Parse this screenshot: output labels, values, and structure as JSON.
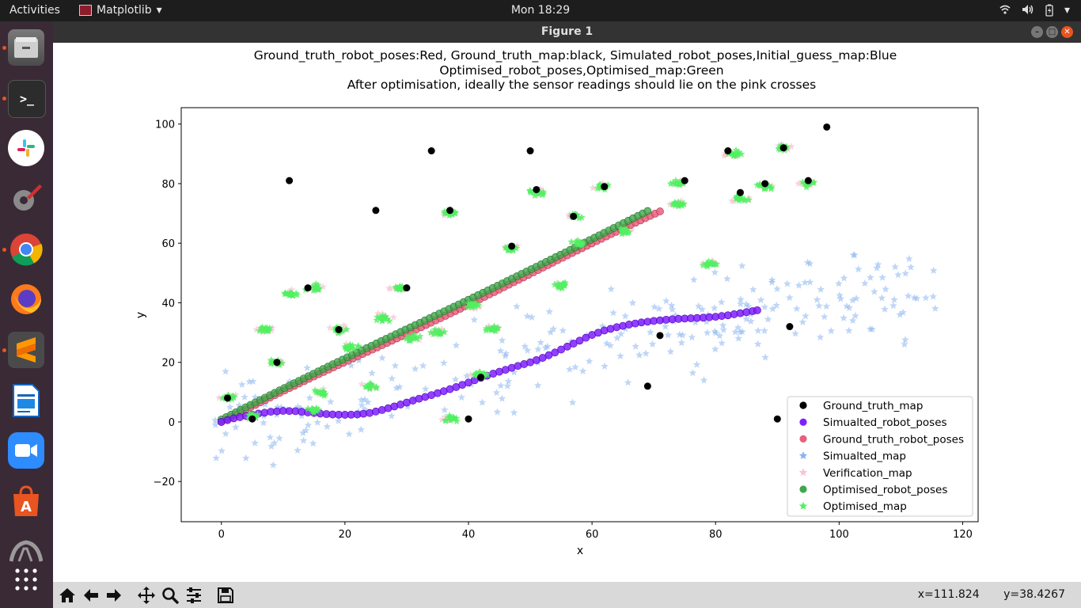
{
  "topbar": {
    "activities": "Activities",
    "app_name": "Matplotlib",
    "clock": "Mon 18:29"
  },
  "window": {
    "title": "Figure 1"
  },
  "dock": {
    "items": [
      "files-icon",
      "terminal-icon",
      "slack-icon",
      "system-tools-icon",
      "chrome-icon",
      "firefox-icon",
      "sublime-icon",
      "writer-icon",
      "zoom-icon",
      "software-icon",
      "steam-icon",
      "show-apps-icon"
    ]
  },
  "toolbar": {
    "x_readout": "x=111.824",
    "y_readout": "y=38.4267"
  },
  "chart_data": {
    "type": "scatter",
    "title": [
      "Ground_truth_robot_poses:Red,  Ground_truth_map:black,  Simulated_robot_poses,Initial_guess_map:Blue",
      "Optimised_robot_poses,Optimised_map:Green",
      "After optimisation, ideally the sensor readings should lie on the pink crosses"
    ],
    "xlabel": "x",
    "ylabel": "y",
    "xlim": [
      -6.5,
      122.5
    ],
    "ylim": [
      -33.5,
      105.5
    ],
    "xticks": [
      0,
      20,
      40,
      60,
      80,
      100,
      120
    ],
    "yticks": [
      -20,
      0,
      20,
      40,
      60,
      80,
      100
    ],
    "xtick_labels": [
      "0",
      "20",
      "40",
      "60",
      "80",
      "100",
      "120"
    ],
    "ytick_labels": [
      "−20",
      "0",
      "20",
      "40",
      "60",
      "80",
      "100"
    ],
    "legend": [
      {
        "label": "Ground_truth_map",
        "marker": "circle",
        "color": "#000000"
      },
      {
        "label": "Simualted_robot_poses",
        "marker": "circle",
        "color": "#7f1fff"
      },
      {
        "label": "Ground_truth_robot_poses",
        "marker": "circle",
        "color": "#e8607a"
      },
      {
        "label": "Simualted_map",
        "marker": "star",
        "color": "#8ab4ef"
      },
      {
        "label": "Verification_map",
        "marker": "star",
        "color": "#f7c6d4"
      },
      {
        "label": "Optimised_robot_poses",
        "marker": "circle",
        "color": "#3ea84a"
      },
      {
        "label": "Optimised_map",
        "marker": "star",
        "color": "#50f060"
      }
    ],
    "ground_truth_map": [
      [
        1,
        8
      ],
      [
        11,
        81
      ],
      [
        14,
        45
      ],
      [
        19,
        31
      ],
      [
        25,
        71
      ],
      [
        34,
        91
      ],
      [
        37,
        71
      ],
      [
        40,
        1
      ],
      [
        42,
        15
      ],
      [
        50,
        91
      ],
      [
        51,
        78
      ],
      [
        57,
        69
      ],
      [
        62,
        79
      ],
      [
        69,
        12
      ],
      [
        71,
        29
      ],
      [
        75,
        81
      ],
      [
        84,
        77
      ],
      [
        88,
        80
      ],
      [
        90,
        1
      ],
      [
        91,
        92
      ],
      [
        92,
        32
      ],
      [
        95,
        81
      ],
      [
        98,
        99
      ],
      [
        82,
        91
      ],
      [
        47,
        59
      ],
      [
        30,
        45
      ],
      [
        9,
        20
      ],
      [
        5,
        1
      ]
    ],
    "simulated_robot_poses": [
      [
        0,
        0
      ],
      [
        2,
        1.2
      ],
      [
        4,
        2
      ],
      [
        6,
        2.8
      ],
      [
        8,
        3.4
      ],
      [
        10,
        3.7
      ],
      [
        12,
        3.6
      ],
      [
        14,
        3.2
      ],
      [
        16,
        2.8
      ],
      [
        18,
        2.5
      ],
      [
        20,
        2.4
      ],
      [
        22,
        2.5
      ],
      [
        24,
        3
      ],
      [
        26,
        4
      ],
      [
        28,
        5.2
      ],
      [
        30,
        6.5
      ],
      [
        32,
        7.8
      ],
      [
        34,
        9
      ],
      [
        36,
        10.3
      ],
      [
        38,
        11.7
      ],
      [
        40,
        13.2
      ],
      [
        42,
        14.8
      ],
      [
        44,
        16.2
      ],
      [
        46,
        17.5
      ],
      [
        48,
        18.8
      ],
      [
        50,
        20
      ],
      [
        52,
        21.5
      ],
      [
        54,
        23.3
      ],
      [
        56,
        25.3
      ],
      [
        58,
        27.3
      ],
      [
        60,
        29.2
      ],
      [
        62,
        30.7
      ],
      [
        64,
        31.8
      ],
      [
        66,
        32.7
      ],
      [
        68,
        33.4
      ],
      [
        70,
        33.9
      ],
      [
        72,
        34.3
      ],
      [
        74,
        34.6
      ],
      [
        76,
        34.8
      ],
      [
        78,
        35
      ],
      [
        80,
        35.3
      ],
      [
        82,
        35.8
      ],
      [
        84,
        36.5
      ],
      [
        86,
        37.2
      ],
      [
        87.5,
        37.8
      ]
    ],
    "ground_truth_robot_poses": [
      [
        0,
        0
      ],
      [
        71,
        70.5
      ]
    ],
    "optimised_robot_poses": [
      [
        0,
        0
      ],
      [
        69,
        69.8
      ]
    ],
    "optimised_map_clusters": [
      [
        1,
        8
      ],
      [
        7,
        31
      ],
      [
        9,
        20
      ],
      [
        11,
        43
      ],
      [
        15,
        45
      ],
      [
        16,
        10
      ],
      [
        19,
        31
      ],
      [
        21,
        25
      ],
      [
        24,
        12
      ],
      [
        26,
        35
      ],
      [
        29,
        45
      ],
      [
        31,
        28
      ],
      [
        35,
        30
      ],
      [
        37,
        70
      ],
      [
        41,
        39
      ],
      [
        44,
        31
      ],
      [
        47,
        58
      ],
      [
        51,
        77
      ],
      [
        55,
        46
      ],
      [
        57,
        69
      ],
      [
        58,
        60
      ],
      [
        62,
        79
      ],
      [
        65,
        64
      ],
      [
        74,
        80
      ],
      [
        74,
        73
      ],
      [
        79,
        53
      ],
      [
        83,
        90
      ],
      [
        84,
        75
      ],
      [
        88,
        79
      ],
      [
        91,
        92
      ],
      [
        95,
        80
      ],
      [
        42,
        16
      ],
      [
        5,
        2
      ],
      [
        15,
        4
      ],
      [
        37,
        1
      ]
    ],
    "simulated_map_range": {
      "x": [
        -1,
        116
      ],
      "y": [
        -27,
        56
      ]
    }
  }
}
